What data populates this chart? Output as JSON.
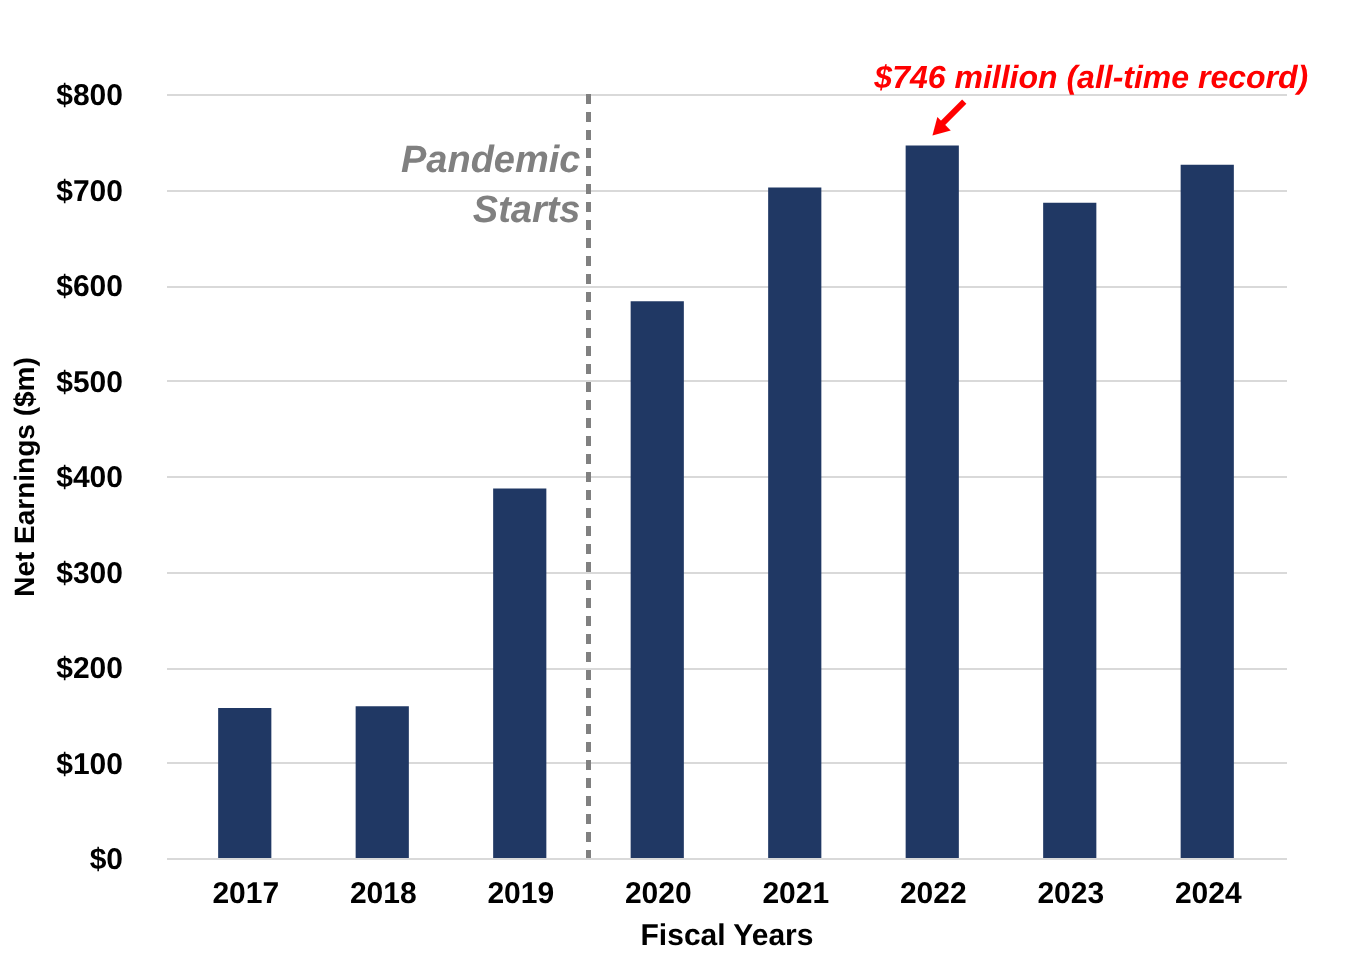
{
  "chart_data": {
    "type": "bar",
    "xlabel": "Fiscal Years",
    "ylabel": "Net Earnings ($m)",
    "x": [
      2017,
      2018,
      2019,
      2020,
      2021,
      2022,
      2023,
      2024
    ],
    "values": [
      157,
      159,
      387,
      583,
      702,
      746,
      686,
      726
    ],
    "color": "#203864",
    "xlim": [
      2016.5,
      2024.5
    ],
    "xticks": [
      2017,
      2018,
      2019,
      2020,
      2021,
      2022,
      2023,
      2024
    ],
    "ylim": [
      0,
      800
    ],
    "yticks": [
      {
        "value": 0,
        "label": "$0"
      },
      {
        "value": 100,
        "label": "$100"
      },
      {
        "value": 200,
        "label": "$200"
      },
      {
        "value": 300,
        "label": "$300"
      },
      {
        "value": 400,
        "label": "$400"
      },
      {
        "value": 500,
        "label": "$500"
      },
      {
        "value": 600,
        "label": "$600"
      },
      {
        "value": 700,
        "label": "$700"
      },
      {
        "value": 800,
        "label": "$800"
      }
    ],
    "grid": "y",
    "ref_lines": [
      {
        "axis": "x",
        "value": 2019.5,
        "label": "Pandemic Starts",
        "color": "#808080",
        "line_style": "dashed"
      }
    ],
    "annotations": [
      {
        "text": "$746 million (all-time record)",
        "x": 2022,
        "y": 746
      }
    ]
  }
}
